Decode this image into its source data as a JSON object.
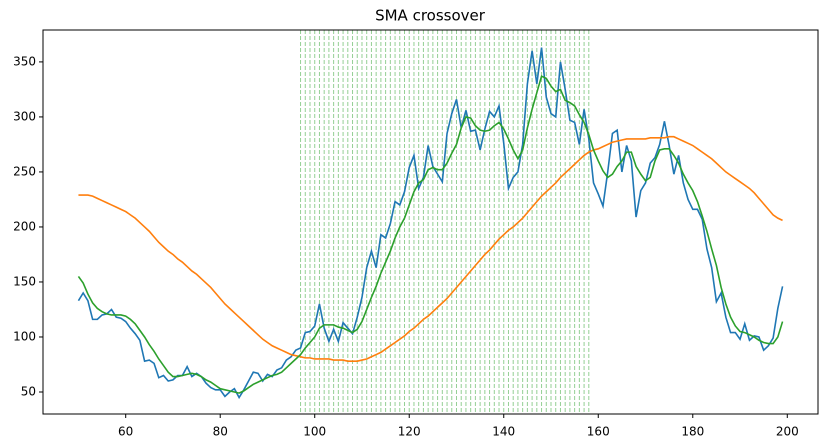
{
  "chart_data": {
    "type": "line",
    "title": "SMA crossover",
    "x": [
      50,
      51,
      52,
      53,
      54,
      55,
      56,
      57,
      58,
      59,
      60,
      61,
      62,
      63,
      64,
      65,
      66,
      67,
      68,
      69,
      70,
      71,
      72,
      73,
      74,
      75,
      76,
      77,
      78,
      79,
      80,
      81,
      82,
      83,
      84,
      85,
      86,
      87,
      88,
      89,
      90,
      91,
      92,
      93,
      94,
      95,
      96,
      97,
      98,
      99,
      100,
      101,
      102,
      103,
      104,
      105,
      106,
      107,
      108,
      109,
      110,
      111,
      112,
      113,
      114,
      115,
      116,
      117,
      118,
      119,
      120,
      121,
      122,
      123,
      124,
      125,
      126,
      127,
      128,
      129,
      130,
      131,
      132,
      133,
      134,
      135,
      136,
      137,
      138,
      139,
      140,
      141,
      142,
      143,
      144,
      145,
      146,
      147,
      148,
      149,
      150,
      151,
      152,
      153,
      154,
      155,
      156,
      157,
      158,
      159,
      160,
      161,
      162,
      163,
      164,
      165,
      166,
      167,
      168,
      169,
      170,
      171,
      172,
      173,
      174,
      175,
      176,
      177,
      178,
      179,
      180,
      181,
      182,
      183,
      184,
      185,
      186,
      187,
      188,
      189,
      190,
      191,
      192,
      193,
      194,
      195,
      196,
      197,
      198,
      199
    ],
    "series": [
      {
        "color": "#1f77b4",
        "values": [
          133,
          140,
          133,
          116,
          116,
          120,
          121,
          125,
          118,
          117,
          114,
          108,
          103,
          97,
          78,
          79,
          76,
          63,
          65,
          60,
          61,
          65,
          65,
          73,
          64,
          67,
          64,
          58,
          54,
          52,
          52,
          46,
          50,
          53,
          45,
          52,
          60,
          68,
          67,
          60,
          66,
          64,
          70,
          72,
          79,
          82,
          88,
          90,
          104,
          105,
          110,
          130,
          108,
          96,
          107,
          96,
          113,
          108,
          103,
          118,
          136,
          163,
          178,
          163,
          193,
          190,
          203,
          223,
          220,
          232,
          254,
          265,
          235,
          245,
          274,
          255,
          248,
          241,
          285,
          303,
          316,
          290,
          306,
          287,
          288,
          270,
          289,
          305,
          300,
          310,
          276,
          235,
          245,
          250,
          275,
          330,
          360,
          330,
          363,
          318,
          303,
          300,
          350,
          325,
          297,
          295,
          275,
          307,
          280,
          240,
          230,
          219,
          250,
          285,
          288,
          250,
          274,
          260,
          209,
          233,
          240,
          258,
          263,
          275,
          296,
          274,
          248,
          265,
          240,
          225,
          216,
          216,
          207,
          180,
          163,
          132,
          140,
          118,
          104,
          104,
          98,
          112,
          97,
          101,
          100,
          88,
          92,
          99,
          126,
          146
        ]
      },
      {
        "color": "#ff7f0e",
        "values": [
          229,
          229,
          229,
          228,
          226,
          224,
          222,
          220,
          218,
          216,
          214,
          211,
          208,
          204,
          200,
          196,
          191,
          186,
          182,
          178,
          175,
          171,
          168,
          164,
          160,
          157,
          153,
          149,
          145,
          140,
          135,
          130,
          126,
          122,
          118,
          114,
          110,
          106,
          102,
          98,
          95,
          92,
          90,
          88,
          86,
          84,
          83,
          82,
          81,
          81,
          80,
          80,
          80,
          80,
          79,
          79,
          79,
          78,
          78,
          78,
          79,
          80,
          82,
          84,
          86,
          89,
          92,
          95,
          98,
          101,
          105,
          108,
          112,
          116,
          119,
          123,
          127,
          131,
          135,
          140,
          145,
          150,
          155,
          160,
          165,
          170,
          175,
          179,
          184,
          189,
          193,
          197,
          200,
          204,
          208,
          213,
          218,
          223,
          228,
          232,
          236,
          240,
          245,
          249,
          253,
          257,
          261,
          265,
          268,
          270,
          271,
          273,
          275,
          277,
          278,
          279,
          280,
          280,
          280,
          280,
          280,
          281,
          281,
          281,
          281,
          282,
          282,
          280,
          278,
          276,
          274,
          271,
          268,
          265,
          262,
          258,
          254,
          250,
          247,
          244,
          241,
          238,
          235,
          231,
          226,
          221,
          216,
          211,
          208,
          206
        ]
      },
      {
        "color": "#2ca02c",
        "values": [
          155,
          149,
          139,
          131,
          126,
          123,
          121,
          120,
          120,
          120,
          119,
          116,
          112,
          106,
          100,
          93,
          87,
          80,
          74,
          68,
          64,
          64,
          65,
          66,
          67,
          66,
          64,
          61,
          59,
          56,
          53,
          52,
          51,
          50,
          49,
          51,
          54,
          57,
          59,
          61,
          63,
          65,
          66,
          68,
          72,
          76,
          80,
          84,
          90,
          95,
          100,
          108,
          111,
          111,
          111,
          109,
          108,
          106,
          104,
          107,
          114,
          125,
          136,
          146,
          158,
          168,
          178,
          190,
          200,
          208,
          220,
          232,
          240,
          243,
          252,
          254,
          252,
          252,
          258,
          267,
          275,
          290,
          300,
          299,
          292,
          288,
          287,
          288,
          292,
          295,
          289,
          280,
          270,
          262,
          270,
          290,
          307,
          322,
          337,
          335,
          328,
          323,
          325,
          315,
          313,
          310,
          302,
          295,
          284,
          270,
          260,
          251,
          245,
          248,
          255,
          260,
          268,
          268,
          255,
          248,
          242,
          245,
          260,
          270,
          271,
          271,
          265,
          258,
          248,
          240,
          233,
          223,
          210,
          196,
          180,
          165,
          145,
          130,
          118,
          110,
          105,
          104,
          102,
          100,
          97,
          95,
          94,
          94,
          100,
          114
        ]
      }
    ],
    "signal_x": [
      97,
      98,
      99,
      100,
      101,
      102,
      103,
      104,
      105,
      106,
      107,
      108,
      109,
      110,
      111,
      112,
      113,
      114,
      115,
      116,
      117,
      118,
      119,
      120,
      121,
      122,
      123,
      124,
      125,
      126,
      127,
      128,
      129,
      130,
      131,
      132,
      133,
      134,
      135,
      136,
      137,
      138,
      139,
      140,
      141,
      142,
      143,
      144,
      145,
      146,
      147,
      148,
      149,
      150,
      151,
      152,
      153,
      154,
      155,
      156,
      157,
      158
    ],
    "signal_color": "#2ca02c",
    "xlim": [
      42.5,
      206.5
    ],
    "ylim": [
      30,
      379
    ],
    "xticks": [
      60,
      80,
      100,
      120,
      140,
      160,
      180,
      200
    ],
    "yticks": [
      50,
      100,
      150,
      200,
      250,
      300,
      350
    ],
    "grid": false
  }
}
